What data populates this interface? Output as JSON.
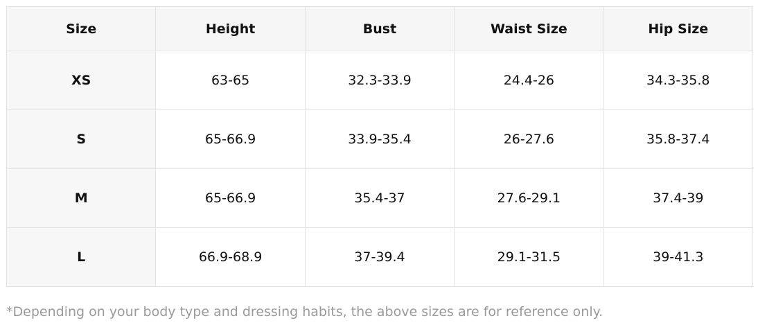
{
  "table": {
    "header": [
      "Size",
      "Height",
      "Bust",
      "Waist Size",
      "Hip Size"
    ],
    "rows": [
      [
        "XS",
        "63-65",
        "32.3-33.9",
        "24.4-26",
        "34.3-35.8"
      ],
      [
        "S",
        "65-66.9",
        "33.9-35.4",
        "26-27.6",
        "35.8-37.4"
      ],
      [
        "M",
        "65-66.9",
        "35.4-37",
        "27.6-29.1",
        "37.4-39"
      ],
      [
        "L",
        "66.9-68.9",
        "37-39.4",
        "29.1-31.5",
        "39-41.3"
      ]
    ]
  },
  "note": "*Depending on your body type and dressing habits, the above sizes are for reference only."
}
